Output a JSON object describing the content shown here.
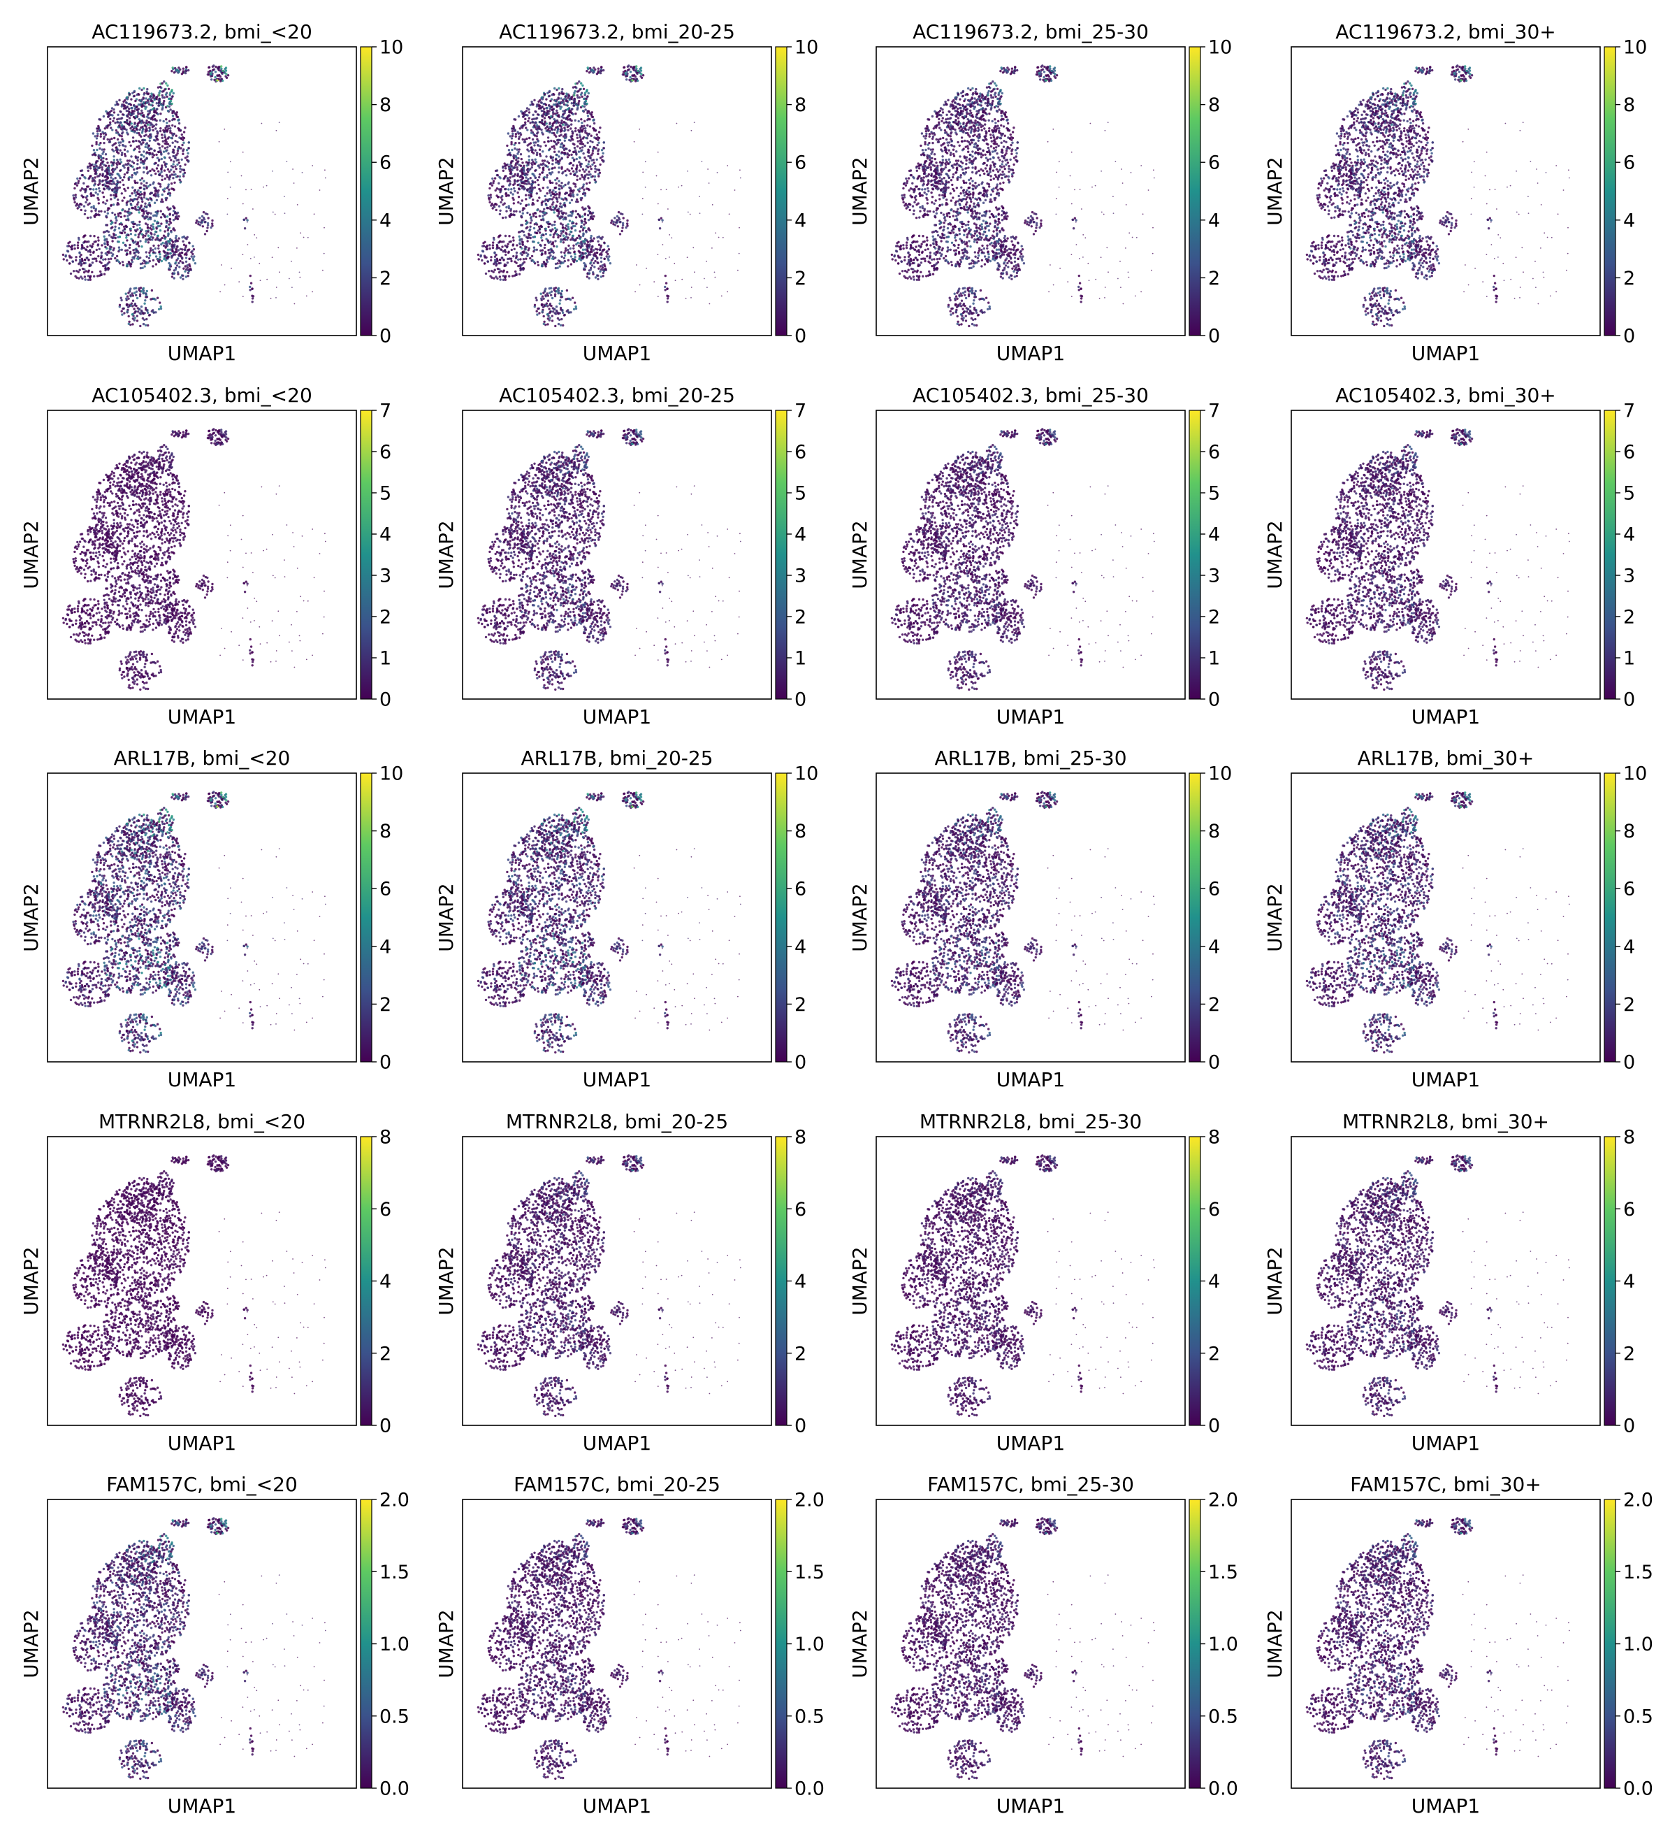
{
  "chart_data": {
    "type": "scatter",
    "layout": "grid",
    "rows": 5,
    "cols": 4,
    "colormap": "viridis",
    "colormap_stops": [
      "#440154",
      "#3b528b",
      "#21918c",
      "#5ec962",
      "#fde725"
    ],
    "point_background": "#ffffff",
    "xlabel": "UMAP1",
    "ylabel": "UMAP2",
    "bmi_groups": [
      "bmi_<20",
      "bmi_20-25",
      "bmi_25-30",
      "bmi_30+"
    ],
    "genes": [
      {
        "gene": "AC119673.2",
        "colorbar": {
          "vmin": 0,
          "vmax": 10,
          "ticks": [
            "0",
            "2",
            "4",
            "6",
            "8",
            "10"
          ]
        },
        "mean_expression_level": [
          0.45,
          0.4,
          0.3,
          0.35
        ]
      },
      {
        "gene": "AC105402.3",
        "colorbar": {
          "vmin": 0,
          "vmax": 7,
          "ticks": [
            "0",
            "1",
            "2",
            "3",
            "4",
            "5",
            "6",
            "7"
          ]
        },
        "mean_expression_level": [
          0.1,
          0.25,
          0.2,
          0.22
        ]
      },
      {
        "gene": "ARL17B",
        "colorbar": {
          "vmin": 0,
          "vmax": 10,
          "ticks": [
            "0",
            "2",
            "4",
            "6",
            "8",
            "10"
          ]
        },
        "mean_expression_level": [
          0.45,
          0.4,
          0.3,
          0.35
        ]
      },
      {
        "gene": "MTRNR2L8",
        "colorbar": {
          "vmin": 0,
          "vmax": 8,
          "ticks": [
            "0",
            "2",
            "4",
            "6",
            "8"
          ]
        },
        "mean_expression_level": [
          0.05,
          0.2,
          0.15,
          0.22
        ]
      },
      {
        "gene": "FAM157C",
        "colorbar": {
          "vmin": 0,
          "vmax": 2,
          "ticks": [
            "0.0",
            "0.5",
            "1.0",
            "1.5",
            "2.0"
          ]
        },
        "mean_expression_level": [
          0.35,
          0.2,
          0.18,
          0.25
        ]
      }
    ],
    "panel_titles": [
      [
        "AC119673.2, bmi_<20",
        "AC119673.2, bmi_20-25",
        "AC119673.2, bmi_25-30",
        "AC119673.2, bmi_30+"
      ],
      [
        "AC105402.3, bmi_<20",
        "AC105402.3, bmi_20-25",
        "AC105402.3, bmi_25-30",
        "AC105402.3, bmi_30+"
      ],
      [
        "ARL17B, bmi_<20",
        "ARL17B, bmi_20-25",
        "ARL17B, bmi_25-30",
        "ARL17B, bmi_30+"
      ],
      [
        "MTRNR2L8, bmi_<20",
        "MTRNR2L8, bmi_20-25",
        "MTRNR2L8, bmi_25-30",
        "MTRNR2L8, bmi_30+"
      ],
      [
        "FAM157C, bmi_<20",
        "FAM157C, bmi_20-25",
        "FAM157C, bmi_25-30",
        "FAM157C, bmi_30+"
      ]
    ],
    "grid": false,
    "axis_ticks": false
  }
}
